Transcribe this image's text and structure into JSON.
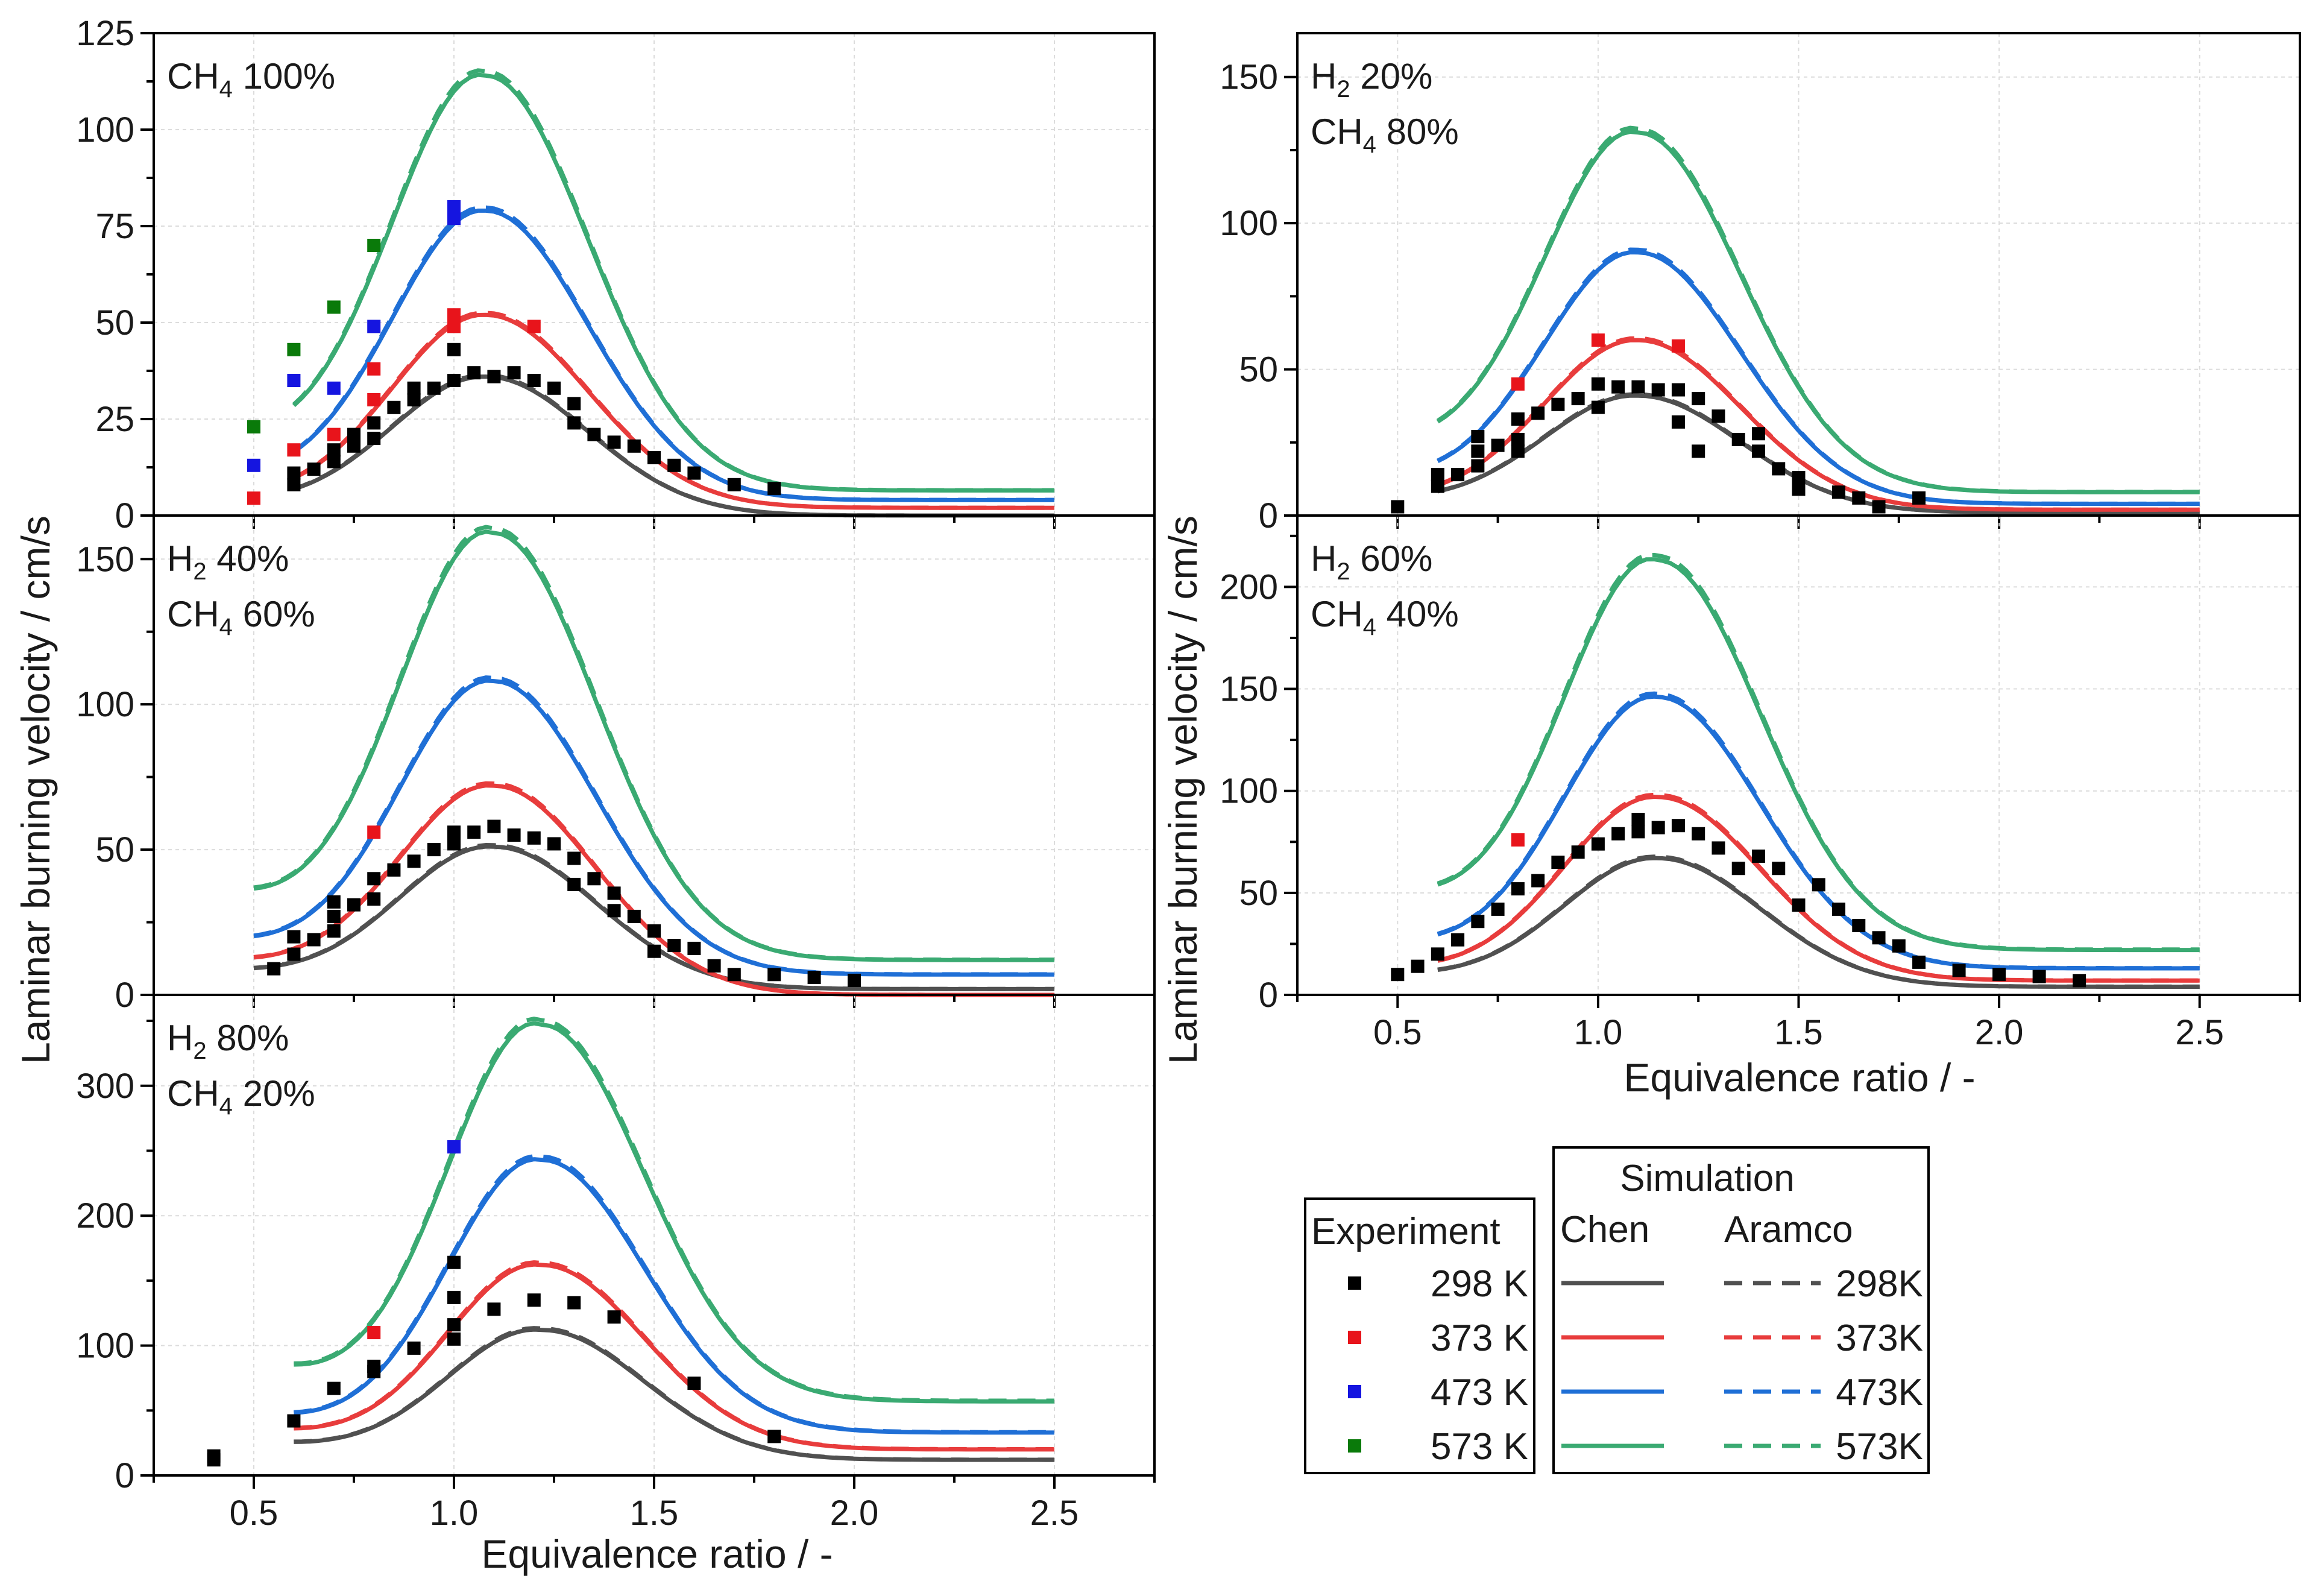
{
  "figure": {
    "shared_ylabel": "Laminar burning velocity / cm/s",
    "xlabel_left": "Equivalence ratio / -",
    "xlabel_right": "Equivalence ratio / -"
  },
  "legend": {
    "experiment_title": "Experiment",
    "simulation_title": "Simulation",
    "chen_label": "Chen",
    "aramco_label": "Aramco",
    "experiment_entries": [
      "298 K",
      "373 K",
      "473 K",
      "573 K"
    ],
    "simulation_entries": [
      "298K",
      "373K",
      "473K",
      "573K"
    ],
    "colors_exp": [
      "#000000",
      "#e8141b",
      "#1515e0",
      "#0a7a0a"
    ],
    "colors_sim": [
      "#505050",
      "#e83c3c",
      "#1f6fd6",
      "#3aaa72"
    ]
  },
  "chart_data": [
    {
      "type": "line",
      "id": "ch4_100",
      "label_lines": [
        {
          "main": "CH",
          "sub": "4",
          "rest": " 100%"
        }
      ],
      "xlim": [
        0.25,
        2.75
      ],
      "ylim": [
        0,
        125
      ],
      "xticks": [
        0.5,
        1.0,
        1.5,
        2.0,
        2.5
      ],
      "xtick_labels": [],
      "yticks": [
        0,
        25,
        50,
        75,
        100,
        125
      ],
      "ytick_labels": [
        "0",
        "25",
        "50",
        "75",
        "100",
        "125"
      ],
      "sim": {
        "peak_phi": [
          1.08,
          1.08,
          1.08,
          1.08
        ],
        "peak_su": [
          36,
          52,
          79,
          114
        ],
        "su_lean": [
          5,
          7,
          13,
          25
        ],
        "su_rich": [
          0,
          2,
          4,
          6.5
        ],
        "phi_start": 0.6,
        "phi_end": 2.5
      },
      "experiment": [
        {
          "temp": "298 K",
          "points": [
            [
              0.6,
              8
            ],
            [
              0.6,
              11
            ],
            [
              0.65,
              12
            ],
            [
              0.7,
              14
            ],
            [
              0.7,
              17
            ],
            [
              0.75,
              18
            ],
            [
              0.75,
              21
            ],
            [
              0.8,
              20
            ],
            [
              0.8,
              24
            ],
            [
              0.85,
              28
            ],
            [
              0.9,
              30
            ],
            [
              0.9,
              33
            ],
            [
              0.95,
              33
            ],
            [
              1.0,
              35
            ],
            [
              1.0,
              43
            ],
            [
              1.05,
              37
            ],
            [
              1.1,
              36
            ],
            [
              1.15,
              37
            ],
            [
              1.2,
              35
            ],
            [
              1.25,
              33
            ],
            [
              1.3,
              29
            ],
            [
              1.3,
              24
            ],
            [
              1.35,
              21
            ],
            [
              1.4,
              19
            ],
            [
              1.45,
              18
            ],
            [
              1.5,
              15
            ],
            [
              1.55,
              13
            ],
            [
              1.6,
              11
            ],
            [
              1.7,
              8
            ],
            [
              1.8,
              7
            ]
          ]
        },
        {
          "temp": "373 K",
          "points": [
            [
              0.5,
              4.5
            ],
            [
              0.6,
              17
            ],
            [
              0.7,
              21
            ],
            [
              0.8,
              30
            ],
            [
              0.8,
              38
            ],
            [
              1.0,
              52
            ],
            [
              1.0,
              49
            ],
            [
              1.2,
              49
            ]
          ]
        },
        {
          "temp": "473 K",
          "points": [
            [
              0.5,
              13
            ],
            [
              0.6,
              35
            ],
            [
              0.7,
              33
            ],
            [
              0.8,
              49
            ],
            [
              1.0,
              77
            ],
            [
              1.0,
              80
            ]
          ]
        },
        {
          "temp": "573 K",
          "points": [
            [
              0.5,
              23
            ],
            [
              0.6,
              43
            ],
            [
              0.7,
              54
            ],
            [
              0.8,
              70
            ]
          ]
        }
      ]
    },
    {
      "type": "line",
      "id": "h2_20",
      "label_lines": [
        {
          "main": "H",
          "sub": "2",
          "rest": " 20%"
        },
        {
          "main": "CH",
          "sub": "4",
          "rest": " 80%"
        }
      ],
      "xlim": [
        0.25,
        2.75
      ],
      "ylim": [
        0,
        165
      ],
      "xticks": [
        0.5,
        1.0,
        1.5,
        2.0,
        2.5
      ],
      "xtick_labels": [],
      "yticks": [
        0,
        50,
        100,
        150
      ],
      "ytick_labels": [
        "0",
        "50",
        "100",
        "150"
      ],
      "sim": {
        "peak_phi": [
          1.1,
          1.1,
          1.1,
          1.1
        ],
        "peak_su": [
          41,
          60,
          90,
          131
        ],
        "su_lean": [
          7,
          8,
          16,
          30
        ],
        "su_rich": [
          1,
          2,
          4,
          8
        ],
        "phi_start": 0.6,
        "phi_end": 2.5
      },
      "experiment": [
        {
          "temp": "298 K",
          "points": [
            [
              0.5,
              3
            ],
            [
              0.6,
              10
            ],
            [
              0.6,
              14
            ],
            [
              0.65,
              14
            ],
            [
              0.7,
              17
            ],
            [
              0.7,
              22
            ],
            [
              0.7,
              27
            ],
            [
              0.75,
              24
            ],
            [
              0.8,
              22
            ],
            [
              0.8,
              26
            ],
            [
              0.8,
              33
            ],
            [
              0.85,
              35
            ],
            [
              0.9,
              38
            ],
            [
              0.95,
              40
            ],
            [
              1.0,
              37
            ],
            [
              1.0,
              45
            ],
            [
              1.05,
              44
            ],
            [
              1.1,
              44
            ],
            [
              1.15,
              43
            ],
            [
              1.2,
              43
            ],
            [
              1.2,
              32
            ],
            [
              1.25,
              40
            ],
            [
              1.25,
              22
            ],
            [
              1.3,
              34
            ],
            [
              1.35,
              26
            ],
            [
              1.4,
              28
            ],
            [
              1.4,
              22
            ],
            [
              1.45,
              16
            ],
            [
              1.5,
              13
            ],
            [
              1.5,
              9
            ],
            [
              1.6,
              8
            ],
            [
              1.65,
              6
            ],
            [
              1.7,
              3
            ],
            [
              1.8,
              6
            ]
          ]
        },
        {
          "temp": "373 K",
          "points": [
            [
              0.8,
              45
            ],
            [
              1.0,
              60
            ],
            [
              1.2,
              58
            ]
          ]
        }
      ]
    },
    {
      "type": "line",
      "id": "h2_40",
      "label_lines": [
        {
          "main": "H",
          "sub": "2",
          "rest": " 40%"
        },
        {
          "main": "CH",
          "sub": "4",
          "rest": " 60%"
        }
      ],
      "xlim": [
        0.25,
        2.75
      ],
      "ylim": [
        0,
        165
      ],
      "xticks": [
        0.5,
        1.0,
        1.5,
        2.0,
        2.5
      ],
      "xtick_labels": [],
      "yticks": [
        0,
        50,
        100,
        150
      ],
      "ytick_labels": [
        "0",
        "50",
        "100",
        "150"
      ],
      "sim": {
        "peak_phi": [
          1.1,
          1.1,
          1.1,
          1.1
        ],
        "peak_su": [
          51,
          72,
          108,
          159
        ],
        "su_lean": [
          10,
          14,
          22,
          40
        ],
        "su_rich": [
          2,
          0,
          7,
          12
        ],
        "phi_start": 0.5,
        "phi_end": 2.5
      },
      "experiment": [
        {
          "temp": "298 K",
          "points": [
            [
              0.55,
              9
            ],
            [
              0.6,
              14
            ],
            [
              0.6,
              20
            ],
            [
              0.65,
              19
            ],
            [
              0.7,
              22
            ],
            [
              0.7,
              27
            ],
            [
              0.7,
              32
            ],
            [
              0.75,
              31
            ],
            [
              0.8,
              33
            ],
            [
              0.8,
              40
            ],
            [
              0.85,
              43
            ],
            [
              0.9,
              46
            ],
            [
              0.95,
              50
            ],
            [
              1.0,
              52
            ],
            [
              1.0,
              56
            ],
            [
              1.05,
              56
            ],
            [
              1.1,
              58
            ],
            [
              1.15,
              55
            ],
            [
              1.2,
              54
            ],
            [
              1.25,
              52
            ],
            [
              1.3,
              47
            ],
            [
              1.3,
              38
            ],
            [
              1.35,
              40
            ],
            [
              1.4,
              35
            ],
            [
              1.4,
              29
            ],
            [
              1.45,
              27
            ],
            [
              1.5,
              22
            ],
            [
              1.5,
              15
            ],
            [
              1.55,
              17
            ],
            [
              1.6,
              16
            ],
            [
              1.65,
              10
            ],
            [
              1.7,
              7
            ],
            [
              1.8,
              7
            ],
            [
              1.9,
              6
            ],
            [
              2.0,
              5
            ]
          ]
        },
        {
          "temp": "373 K",
          "points": [
            [
              0.8,
              56
            ]
          ]
        }
      ]
    },
    {
      "type": "line",
      "id": "h2_60",
      "label_lines": [
        {
          "main": "H",
          "sub": "2",
          "rest": " 60%"
        },
        {
          "main": "CH",
          "sub": "4",
          "rest": " 40%"
        }
      ],
      "xlim": [
        0.25,
        2.75
      ],
      "ylim": [
        0,
        235
      ],
      "xticks": [
        0.5,
        1.0,
        1.5,
        2.0,
        2.5
      ],
      "xtick_labels": [
        "0.5",
        "1.0",
        "1.5",
        "2.0",
        "2.5"
      ],
      "yticks": [
        0,
        50,
        100,
        150,
        200
      ],
      "ytick_labels": [
        "0",
        "50",
        "100",
        "150",
        "200"
      ],
      "sim": {
        "peak_phi": [
          1.15,
          1.15,
          1.15,
          1.15
        ],
        "peak_su": [
          67,
          97,
          146,
          213
        ],
        "su_lean": [
          12,
          16,
          30,
          58
        ],
        "su_rich": [
          4,
          7,
          13,
          22
        ],
        "phi_start": 0.6,
        "phi_end": 2.5
      },
      "experiment": [
        {
          "temp": "298 K",
          "points": [
            [
              0.5,
              10
            ],
            [
              0.55,
              14
            ],
            [
              0.6,
              20
            ],
            [
              0.65,
              27
            ],
            [
              0.7,
              36
            ],
            [
              0.75,
              42
            ],
            [
              0.8,
              52
            ],
            [
              0.85,
              56
            ],
            [
              0.9,
              65
            ],
            [
              0.95,
              70
            ],
            [
              1.0,
              74
            ],
            [
              1.05,
              79
            ],
            [
              1.1,
              86
            ],
            [
              1.1,
              80
            ],
            [
              1.15,
              82
            ],
            [
              1.2,
              83
            ],
            [
              1.25,
              79
            ],
            [
              1.3,
              72
            ],
            [
              1.35,
              62
            ],
            [
              1.4,
              68
            ],
            [
              1.45,
              62
            ],
            [
              1.5,
              44
            ],
            [
              1.55,
              54
            ],
            [
              1.6,
              42
            ],
            [
              1.65,
              34
            ],
            [
              1.7,
              28
            ],
            [
              1.75,
              24
            ],
            [
              1.8,
              16
            ],
            [
              1.9,
              12
            ],
            [
              2.0,
              10
            ],
            [
              2.1,
              9
            ],
            [
              2.2,
              7
            ]
          ]
        },
        {
          "temp": "373 K",
          "points": [
            [
              0.8,
              76
            ]
          ]
        }
      ]
    },
    {
      "type": "line",
      "id": "h2_80",
      "label_lines": [
        {
          "main": "H",
          "sub": "2",
          "rest": " 80%"
        },
        {
          "main": "CH",
          "sub": "4",
          "rest": " 20%"
        }
      ],
      "xlim": [
        0.25,
        2.75
      ],
      "ylim": [
        0,
        370
      ],
      "xticks": [
        0.5,
        1.0,
        1.5,
        2.0,
        2.5
      ],
      "xtick_labels": [
        "0.5",
        "1.0",
        "1.5",
        "2.0",
        "2.5"
      ],
      "yticks": [
        0,
        100,
        200,
        300
      ],
      "ytick_labels": [
        "0",
        "100",
        "200",
        "300"
      ],
      "sim": {
        "peak_phi": [
          1.22,
          1.22,
          1.22,
          1.22
        ],
        "peak_su": [
          112,
          162,
          243,
          347
        ],
        "su_lean": [
          30,
          42,
          55,
          100
        ],
        "su_rich": [
          12,
          20,
          33,
          57
        ],
        "phi_start": 0.6,
        "phi_end": 2.5
      },
      "experiment": [
        {
          "temp": "298 K",
          "points": [
            [
              0.4,
              12
            ],
            [
              0.4,
              15
            ],
            [
              0.6,
              42
            ],
            [
              0.7,
              67
            ],
            [
              0.8,
              80
            ],
            [
              0.8,
              84
            ],
            [
              0.9,
              98
            ],
            [
              1.0,
              105
            ],
            [
              1.0,
              116
            ],
            [
              1.0,
              137
            ],
            [
              1.0,
              164
            ],
            [
              1.1,
              128
            ],
            [
              1.2,
              135
            ],
            [
              1.3,
              133
            ],
            [
              1.4,
              122
            ],
            [
              1.6,
              71
            ],
            [
              1.8,
              30
            ]
          ]
        },
        {
          "temp": "373 K",
          "points": [
            [
              0.8,
              110
            ]
          ]
        },
        {
          "temp": "473 K",
          "points": [
            [
              1.0,
              253
            ]
          ]
        }
      ]
    }
  ]
}
